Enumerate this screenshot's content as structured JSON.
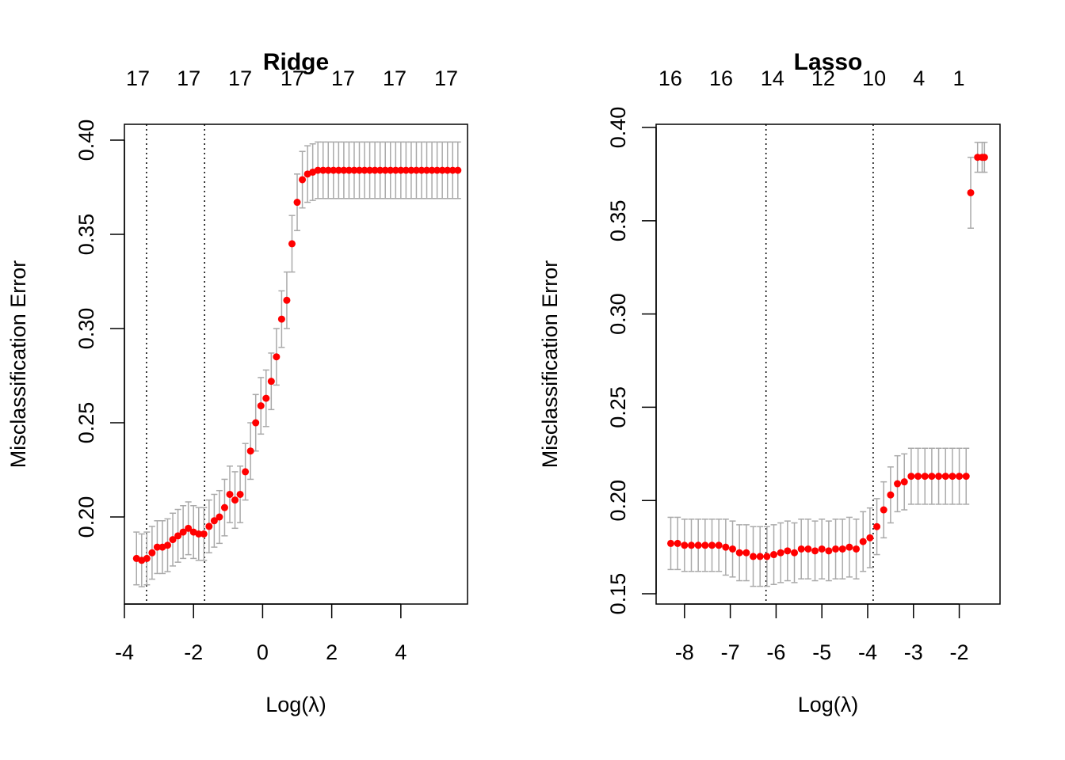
{
  "chart_data": [
    {
      "type": "scatter",
      "title": "Ridge",
      "xlabel": "Log(λ)",
      "ylabel": "Misclassification Error",
      "x": [
        -3.65,
        -3.5,
        -3.35,
        -3.2,
        -3.05,
        -2.9,
        -2.75,
        -2.6,
        -2.45,
        -2.3,
        -2.15,
        -2.0,
        -1.85,
        -1.7,
        -1.55,
        -1.4,
        -1.25,
        -1.1,
        -0.95,
        -0.8,
        -0.65,
        -0.5,
        -0.35,
        -0.2,
        -0.05,
        0.1,
        0.25,
        0.4,
        0.55,
        0.7,
        0.85,
        1.0,
        1.15,
        1.3,
        1.45,
        1.6,
        1.75,
        1.9,
        2.05,
        2.2,
        2.35,
        2.5,
        2.65,
        2.8,
        2.95,
        3.1,
        3.25,
        3.4,
        3.55,
        3.7,
        3.85,
        4.0,
        4.15,
        4.3,
        4.45,
        4.6,
        4.75,
        4.9,
        5.05,
        5.2,
        5.35,
        5.5,
        5.65
      ],
      "values": [
        0.178,
        0.177,
        0.178,
        0.181,
        0.184,
        0.184,
        0.185,
        0.188,
        0.19,
        0.192,
        0.194,
        0.192,
        0.191,
        0.191,
        0.195,
        0.198,
        0.2,
        0.205,
        0.212,
        0.209,
        0.212,
        0.224,
        0.235,
        0.25,
        0.259,
        0.263,
        0.272,
        0.285,
        0.305,
        0.315,
        0.345,
        0.367,
        0.379,
        0.382,
        0.383,
        0.384,
        0.384,
        0.384,
        0.384,
        0.384,
        0.384,
        0.384,
        0.384,
        0.384,
        0.384,
        0.384,
        0.384,
        0.384,
        0.384,
        0.384,
        0.384,
        0.384,
        0.384,
        0.384,
        0.384,
        0.384,
        0.384,
        0.384,
        0.384,
        0.384,
        0.384,
        0.384,
        0.384
      ],
      "errors": [
        0.014,
        0.014,
        0.014,
        0.014,
        0.014,
        0.014,
        0.014,
        0.014,
        0.014,
        0.014,
        0.014,
        0.014,
        0.014,
        0.014,
        0.014,
        0.014,
        0.014,
        0.015,
        0.015,
        0.015,
        0.015,
        0.015,
        0.015,
        0.015,
        0.015,
        0.015,
        0.015,
        0.015,
        0.015,
        0.015,
        0.015,
        0.015,
        0.015,
        0.015,
        0.015,
        0.015,
        0.015,
        0.015,
        0.015,
        0.015,
        0.015,
        0.015,
        0.015,
        0.015,
        0.015,
        0.015,
        0.015,
        0.015,
        0.015,
        0.015,
        0.015,
        0.015,
        0.015,
        0.015,
        0.015,
        0.015,
        0.015,
        0.015,
        0.015,
        0.015,
        0.015,
        0.015,
        0.015
      ],
      "point_color": "#ff0000",
      "error_color": "#aaaaaa",
      "xlim": [
        -4.0,
        5.93
      ],
      "ylim": [
        0.1538,
        0.4084
      ],
      "xticks": [
        -4,
        -2,
        0,
        2,
        4
      ],
      "yticks": [
        {
          "value": 0.2,
          "label": "0.20"
        },
        {
          "value": 0.25,
          "label": "0.25"
        },
        {
          "value": 0.3,
          "label": "0.30"
        },
        {
          "value": 0.35,
          "label": "0.35"
        },
        {
          "value": 0.4,
          "label": "0.40"
        }
      ],
      "x2ticks": [
        {
          "value": -3.61,
          "label": "17"
        },
        {
          "value": -2.14,
          "label": "17"
        },
        {
          "value": -0.65,
          "label": "17"
        },
        {
          "value": 0.86,
          "label": "17"
        },
        {
          "value": 2.33,
          "label": "17"
        },
        {
          "value": 3.82,
          "label": "17"
        },
        {
          "value": 5.31,
          "label": "17"
        }
      ],
      "vlines": [
        -3.36,
        -1.68
      ]
    },
    {
      "type": "scatter",
      "title": "Lasso",
      "xlabel": "Log(λ)",
      "ylabel": "Misclassification Error",
      "x": [
        -8.3,
        -8.15,
        -8.0,
        -7.85,
        -7.7,
        -7.55,
        -7.4,
        -7.25,
        -7.1,
        -6.95,
        -6.8,
        -6.65,
        -6.5,
        -6.35,
        -6.2,
        -6.05,
        -5.9,
        -5.75,
        -5.6,
        -5.45,
        -5.3,
        -5.15,
        -5.0,
        -4.85,
        -4.7,
        -4.55,
        -4.4,
        -4.25,
        -4.1,
        -3.95,
        -3.8,
        -3.65,
        -3.5,
        -3.35,
        -3.2,
        -3.05,
        -2.9,
        -2.75,
        -2.6,
        -2.45,
        -2.3,
        -2.15,
        -2.0,
        -1.85,
        -1.75,
        -1.6,
        -1.5,
        -1.45
      ],
      "values": [
        0.177,
        0.177,
        0.176,
        0.176,
        0.176,
        0.176,
        0.176,
        0.176,
        0.175,
        0.174,
        0.172,
        0.172,
        0.17,
        0.17,
        0.17,
        0.171,
        0.172,
        0.173,
        0.172,
        0.174,
        0.174,
        0.173,
        0.174,
        0.173,
        0.174,
        0.174,
        0.175,
        0.174,
        0.178,
        0.18,
        0.186,
        0.195,
        0.203,
        0.209,
        0.21,
        0.213,
        0.213,
        0.213,
        0.213,
        0.213,
        0.213,
        0.213,
        0.213,
        0.213,
        0.365,
        0.384,
        0.384,
        0.384
      ],
      "errors": [
        0.014,
        0.014,
        0.014,
        0.014,
        0.014,
        0.014,
        0.014,
        0.014,
        0.015,
        0.015,
        0.015,
        0.015,
        0.016,
        0.016,
        0.016,
        0.016,
        0.016,
        0.016,
        0.016,
        0.016,
        0.016,
        0.016,
        0.016,
        0.016,
        0.016,
        0.016,
        0.016,
        0.016,
        0.016,
        0.016,
        0.015,
        0.015,
        0.015,
        0.015,
        0.015,
        0.015,
        0.015,
        0.015,
        0.015,
        0.015,
        0.015,
        0.015,
        0.015,
        0.015,
        0.019,
        0.008,
        0.008,
        0.008
      ],
      "point_color": "#ff0000",
      "error_color": "#aaaaaa",
      "xlim": [
        -8.62,
        -1.11
      ],
      "ylim": [
        0.1445,
        0.4017
      ],
      "xticks": [
        -8,
        -7,
        -6,
        -5,
        -4,
        -3,
        -2
      ],
      "yticks": [
        {
          "value": 0.15,
          "label": "0.15"
        },
        {
          "value": 0.2,
          "label": "0.20"
        },
        {
          "value": 0.25,
          "label": "0.25"
        },
        {
          "value": 0.3,
          "label": "0.30"
        },
        {
          "value": 0.35,
          "label": "0.35"
        },
        {
          "value": 0.4,
          "label": "0.40"
        }
      ],
      "x2ticks": [
        {
          "value": -8.31,
          "label": "16"
        },
        {
          "value": -7.2,
          "label": "16"
        },
        {
          "value": -6.08,
          "label": "14"
        },
        {
          "value": -4.97,
          "label": "12"
        },
        {
          "value": -3.86,
          "label": "10"
        },
        {
          "value": -2.88,
          "label": "4"
        },
        {
          "value": -2.01,
          "label": "1"
        }
      ],
      "vlines": [
        -6.22,
        -3.88
      ]
    }
  ]
}
